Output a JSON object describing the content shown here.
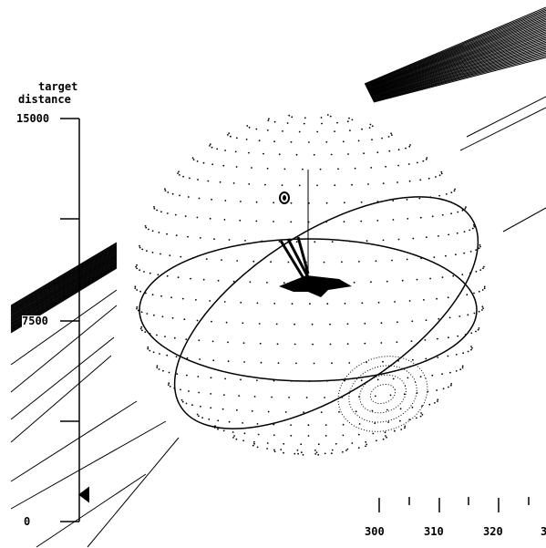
{
  "gauge": {
    "title_line1": "target",
    "title_line2": "distance",
    "max_label": "15000",
    "mid_label": "7500",
    "min_label": "0",
    "pointer_value": 1000,
    "range": [
      0,
      15000
    ]
  },
  "heading_scale": {
    "labels": [
      "300",
      "310",
      "320",
      "3"
    ]
  },
  "colors": {
    "ink": "#000000",
    "background": "#ffffff"
  }
}
